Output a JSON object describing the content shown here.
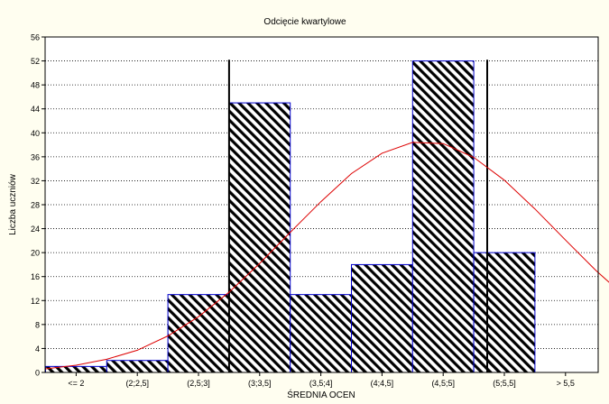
{
  "chart_data": {
    "type": "bar",
    "title": "Odcięcie kwartylowe",
    "xlabel": "ŚREDNIA OCEN",
    "ylabel": "Liczba uczniów",
    "categories": [
      "<= 2",
      "(2;2,5]",
      "(2,5;3]",
      "(3;3,5]",
      "(3,5;4]",
      "(4;4,5]",
      "(4,5;5]",
      "(5;5,5]",
      "> 5,5"
    ],
    "values": [
      1,
      2,
      13,
      45,
      13,
      18,
      52,
      20,
      0
    ],
    "ylim": [
      0,
      56
    ],
    "yticks": [
      0,
      4,
      8,
      12,
      16,
      20,
      24,
      28,
      32,
      36,
      40,
      44,
      48,
      52,
      56
    ],
    "grid": true,
    "legend": "none",
    "bar_fill": "diagonal-hatch",
    "bar_edge_color": "#0000cc",
    "fit_curve": {
      "type": "normal",
      "color": "#dd0000",
      "points": [
        [
          0,
          0.6
        ],
        [
          0.5,
          1.2
        ],
        [
          1,
          2.2
        ],
        [
          1.5,
          3.7
        ],
        [
          2,
          6.1
        ],
        [
          2.5,
          9.3
        ],
        [
          3,
          13.4
        ],
        [
          3.5,
          18.2
        ],
        [
          4,
          23.4
        ],
        [
          4.5,
          28.5
        ],
        [
          5,
          33.2
        ],
        [
          5.5,
          36.6
        ],
        [
          6,
          38.4
        ],
        [
          6.5,
          38.2
        ],
        [
          7,
          35.9
        ],
        [
          7.5,
          32.1
        ],
        [
          8,
          27.3
        ],
        [
          8.5,
          22.1
        ],
        [
          9,
          17.0
        ],
        [
          9.5,
          12.4
        ],
        [
          10,
          8.6
        ],
        [
          10.5,
          5.7
        ],
        [
          11,
          3.5
        ]
      ]
    },
    "cutoff_lines": [
      {
        "x": 3,
        "top": 52.2,
        "color": "#000000"
      },
      {
        "x": 7.22,
        "top": 52.2,
        "color": "#000000"
      }
    ]
  }
}
